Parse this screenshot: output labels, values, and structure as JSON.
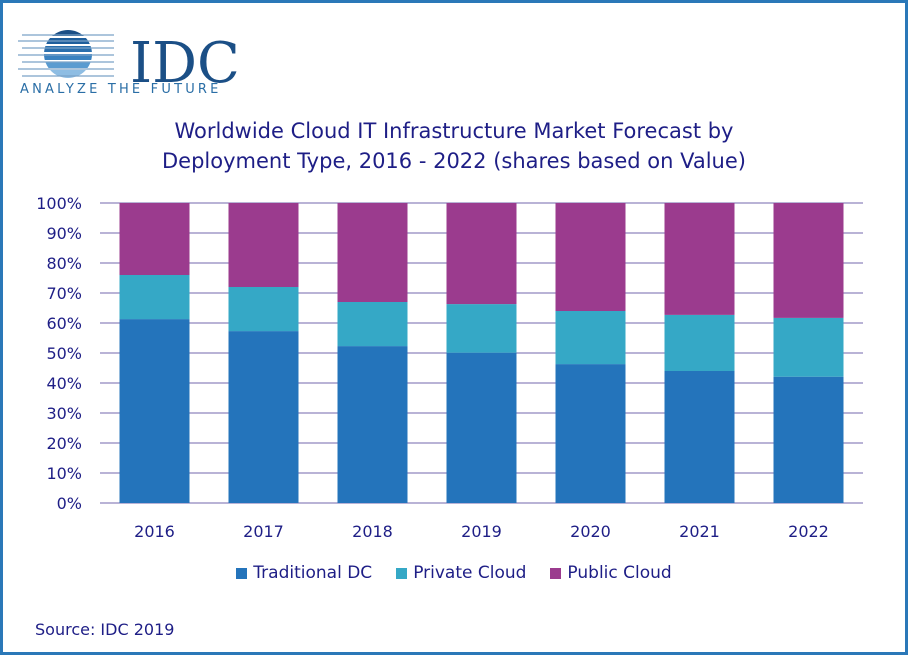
{
  "header": {
    "logo_text": "IDC",
    "logo_tagline": "ANALYZE THE FUTURE"
  },
  "source": "Source: IDC 2019",
  "chart_data": {
    "type": "bar",
    "stacked": true,
    "title": "Worldwide Cloud IT Infrastructure Market Forecast by Deployment Type, 2016 - 2022 (shares based on Value)",
    "title_lines": [
      "Worldwide Cloud IT Infrastructure Market Forecast by",
      "Deployment Type, 2016 - 2022 (shares based on Value)"
    ],
    "xlabel": "",
    "ylabel": "",
    "categories": [
      "2016",
      "2017",
      "2018",
      "2019",
      "2020",
      "2021",
      "2022"
    ],
    "ylim": [
      0,
      100
    ],
    "yticks": [
      "0%",
      "10%",
      "20%",
      "30%",
      "40%",
      "50%",
      "60%",
      "70%",
      "80%",
      "90%",
      "100%"
    ],
    "grid": true,
    "legend_position": "bottom",
    "series": [
      {
        "name": "Traditional DC",
        "color": "#2474bb",
        "values": [
          61.3,
          57.3,
          52.3,
          50.1,
          46.3,
          44.0,
          42.1
        ]
      },
      {
        "name": "Private Cloud",
        "color": "#35a8c6",
        "values": [
          14.7,
          14.7,
          14.7,
          16.2,
          17.7,
          18.7,
          19.6
        ]
      },
      {
        "name": "Public Cloud",
        "color": "#9b3b8e",
        "values": [
          24.0,
          28.0,
          33.0,
          33.7,
          36.0,
          37.3,
          38.3
        ]
      }
    ],
    "gridline_color": "#b9b3d6",
    "text_color": "#1e1e86"
  }
}
